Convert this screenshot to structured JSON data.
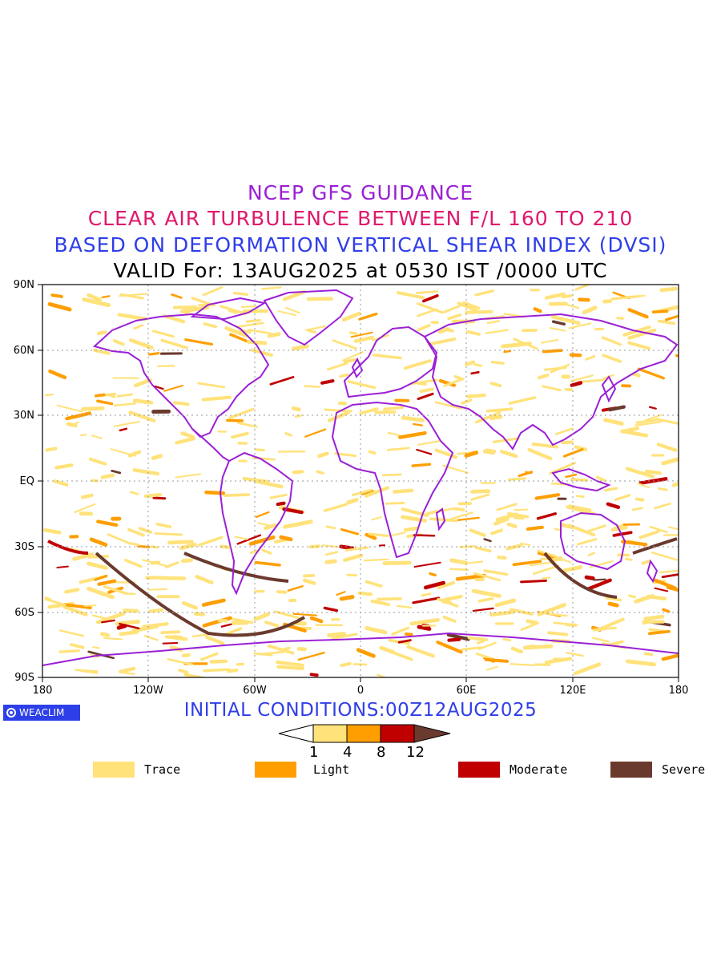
{
  "titles": {
    "line1": "NCEP GFS GUIDANCE",
    "line2": "CLEAR AIR TURBULENCE BETWEEN F/L 160 TO 210",
    "line3": "BASED ON DEFORMATION VERTICAL SHEAR INDEX (DVSI)",
    "line4": "VALID For: 13AUG2025 at 0530 IST /0000 UTC"
  },
  "axes": {
    "lat_labels": [
      "90N",
      "60N",
      "30N",
      "EQ",
      "30S",
      "60S",
      "90S"
    ],
    "lon_labels": [
      "180",
      "120W",
      "60W",
      "0",
      "60E",
      "120E",
      "180"
    ]
  },
  "logo": {
    "text": "WEACLIM"
  },
  "initial_conditions": "INITIAL CONDITIONS:00Z12AUG2025",
  "colorbar": {
    "ticks": [
      "1",
      "4",
      "8",
      "12"
    ],
    "colors": [
      "#ffffff",
      "#ffe27a",
      "#ff9e00",
      "#c00000",
      "#6b3a2e"
    ]
  },
  "legend": [
    {
      "label": "Trace",
      "color": "#ffe27a"
    },
    {
      "label": "Light",
      "color": "#ff9e00"
    },
    {
      "label": "Moderate",
      "color": "#c00000"
    },
    {
      "label": "Severe",
      "color": "#6b3a2e"
    }
  ],
  "colors": {
    "coastline": "#9b1fd6",
    "grid": "#9a9a9a"
  }
}
